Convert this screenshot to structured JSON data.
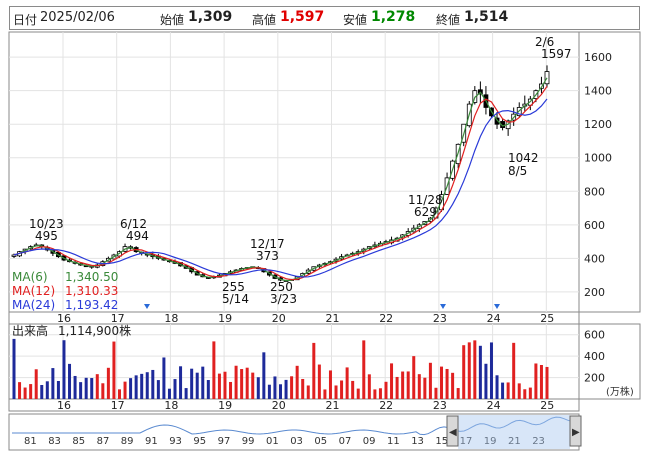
{
  "header": {
    "date_label": "日付",
    "date_value": "2025/02/06",
    "open_label": "始値",
    "open_value": "1,309",
    "high_label": "高値",
    "high_value": "1,597",
    "low_label": "安値",
    "low_value": "1,278",
    "close_label": "終値",
    "close_value": "1,514",
    "colors": {
      "high": "#e00000",
      "low": "#008800",
      "text": "#222222"
    }
  },
  "chart_data": {
    "type": "candlestick",
    "x_ticks": [
      "16",
      "17",
      "18",
      "19",
      "20",
      "21",
      "22",
      "23",
      "24",
      "25"
    ],
    "y_ticks": [
      "200",
      "400",
      "600",
      "800",
      "1000",
      "1200",
      "1400",
      "1600"
    ],
    "ylim": [
      80,
      1750
    ],
    "grid": true,
    "ma_legend": [
      {
        "name": "MA(6)",
        "value": "1,340.50",
        "color": "#3a8a3a"
      },
      {
        "name": "MA(12)",
        "value": "1,310.33",
        "color": "#e02020"
      },
      {
        "name": "MA(24)",
        "value": "1,193.42",
        "color": "#2a3ad8"
      }
    ],
    "annotations": [
      {
        "date": "10/23",
        "value": "495",
        "pos": "above"
      },
      {
        "date": "6/12",
        "value": "494",
        "pos": "above"
      },
      {
        "date": "5/14",
        "value": "255",
        "pos": "below"
      },
      {
        "date": "12/17",
        "value": "373",
        "pos": "above"
      },
      {
        "date": "3/23",
        "value": "250",
        "pos": "below"
      },
      {
        "date": "11/28",
        "value": "629",
        "pos": "above"
      },
      {
        "date": "8/5",
        "value": "1042",
        "pos": "below"
      },
      {
        "date": "2/6",
        "value": "1597",
        "pos": "above"
      }
    ],
    "price_series": [
      420,
      440,
      455,
      470,
      480,
      470,
      450,
      430,
      410,
      390,
      380,
      370,
      360,
      355,
      350,
      360,
      380,
      400,
      420,
      440,
      470,
      460,
      440,
      430,
      420,
      410,
      400,
      390,
      380,
      370,
      355,
      340,
      320,
      300,
      290,
      285,
      290,
      300,
      310,
      320,
      330,
      340,
      345,
      350,
      340,
      320,
      300,
      280,
      270,
      265,
      275,
      290,
      310,
      330,
      350,
      360,
      370,
      380,
      395,
      410,
      420,
      430,
      440,
      455,
      470,
      480,
      490,
      500,
      510,
      520,
      540,
      560,
      580,
      600,
      620,
      640,
      700,
      780,
      880,
      980,
      1080,
      1200,
      1320,
      1400,
      1380,
      1300,
      1250,
      1200,
      1180,
      1220,
      1260,
      1300,
      1320,
      1350,
      1400,
      1440,
      1514
    ],
    "volume": {
      "label": "出来高",
      "value": "1,114,900株",
      "y_ticks": [
        "200",
        "400",
        "600"
      ],
      "unit": "(万株)",
      "ylim": [
        0,
        700
      ]
    },
    "nav_ticks": [
      "81",
      "83",
      "85",
      "87",
      "89",
      "91",
      "93",
      "95",
      "97",
      "99",
      "01",
      "03",
      "05",
      "07",
      "09",
      "11",
      "13",
      "15",
      "17",
      "19",
      "21",
      "23"
    ]
  }
}
